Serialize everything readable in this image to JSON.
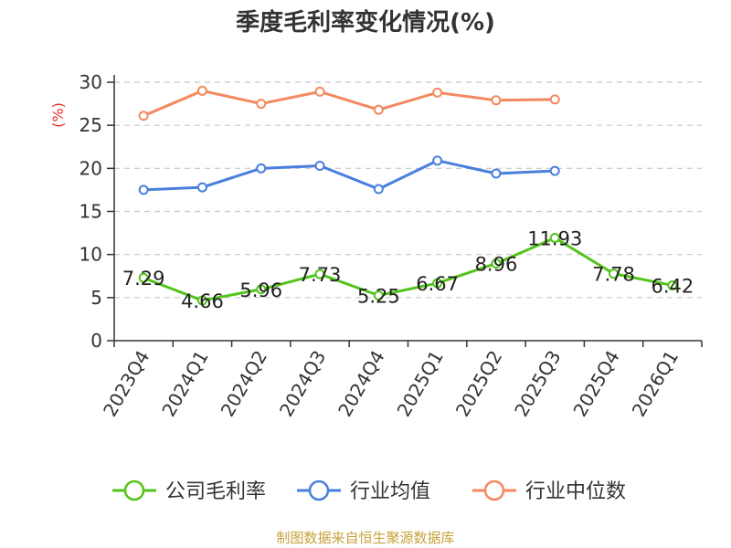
{
  "chart_data": {
    "type": "line",
    "title": "季度毛利率变化情况(%)",
    "ylabel": "(%)",
    "xlabel": "",
    "ylim": [
      0,
      30
    ],
    "yticks": [
      0,
      5,
      10,
      15,
      20,
      25,
      30
    ],
    "grid": true,
    "legend_position": "bottom",
    "categories": [
      "2023Q4",
      "2024Q1",
      "2024Q2",
      "2024Q3",
      "2024Q4",
      "2025Q1",
      "2025Q2",
      "2025Q3",
      "2025Q4",
      "2026Q1"
    ],
    "series": [
      {
        "name": "公司毛利率",
        "color": "#52c41a",
        "show_labels": true,
        "values": [
          7.29,
          4.66,
          5.96,
          7.73,
          5.25,
          6.67,
          8.96,
          11.93,
          7.78,
          6.42
        ],
        "labels": [
          "7.29",
          "4.66",
          "5.96",
          "7.73",
          "5.25",
          "6.67",
          "8.96",
          "11.93",
          "7.78",
          "6.42"
        ]
      },
      {
        "name": "行业均值",
        "color": "#4a7fdc",
        "show_labels": false,
        "values": [
          17.5,
          17.8,
          20.0,
          20.3,
          17.6,
          20.9,
          19.4,
          19.7,
          null,
          null
        ]
      },
      {
        "name": "行业中位数",
        "color": "#f4895f",
        "show_labels": false,
        "values": [
          26.1,
          29.0,
          27.5,
          28.9,
          26.8,
          28.8,
          27.9,
          28.0,
          null,
          null
        ]
      }
    ]
  },
  "source_text": "制图数据来自恒生聚源数据库"
}
